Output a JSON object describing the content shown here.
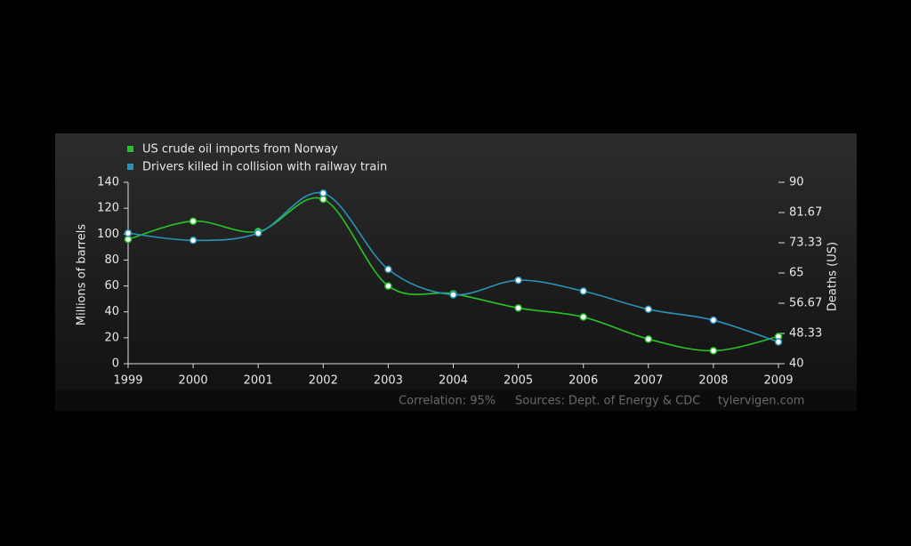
{
  "chart_data": {
    "type": "line",
    "categories": [
      "1999",
      "2000",
      "2001",
      "2002",
      "2003",
      "2004",
      "2005",
      "2006",
      "2007",
      "2008",
      "2009"
    ],
    "series": [
      {
        "name": "US crude oil imports from Norway",
        "color": "#27c427",
        "axis": "y",
        "values": [
          96,
          110,
          102,
          127,
          60,
          54,
          43,
          36,
          19,
          10,
          21
        ]
      },
      {
        "name": "Drivers killed in collision with railway train",
        "color": "#2a93b8",
        "axis": "y2",
        "values": [
          76,
          74,
          76,
          87,
          66,
          59,
          63,
          60,
          55,
          52,
          46
        ]
      }
    ],
    "ylim": [
      0,
      140
    ],
    "yticks": [
      0,
      20,
      40,
      60,
      80,
      100,
      120,
      140
    ],
    "y2lim": [
      40,
      90
    ],
    "y2ticks": [
      40,
      48.33,
      56.67,
      65,
      73.33,
      81.67,
      90
    ],
    "y_label": "Millions of barrels",
    "y2_label": "Deaths (US)",
    "annotations": [
      "Correlation: 95%",
      "Sources: Dept. of Energy & CDC",
      "tylervigen.com"
    ]
  }
}
